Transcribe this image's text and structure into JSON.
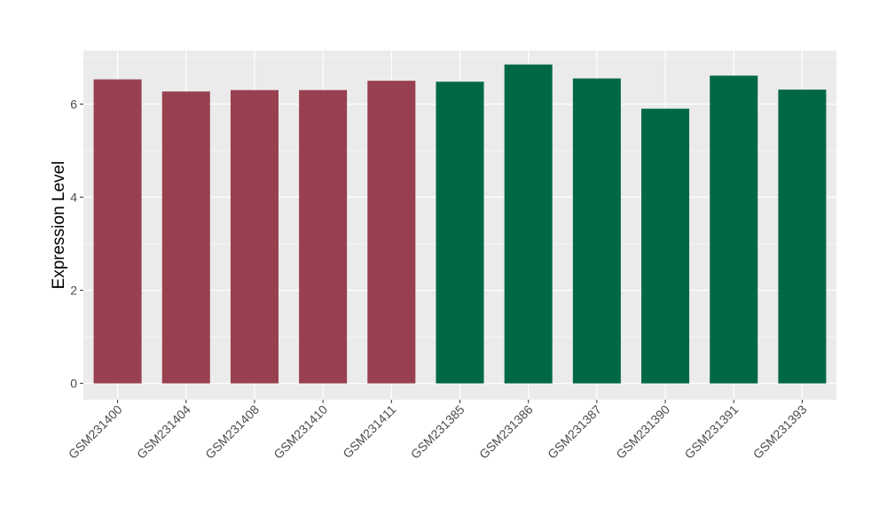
{
  "chart_data": {
    "type": "bar",
    "title": "",
    "xlabel": "",
    "ylabel": "Expression Level",
    "ylim": [
      -0.35,
      7.15
    ],
    "yticks": [
      0,
      2,
      4,
      6
    ],
    "grid": true,
    "categories": [
      "GSM231400",
      "GSM231404",
      "GSM231408",
      "GSM231410",
      "GSM231411",
      "GSM231385",
      "GSM231386",
      "GSM231387",
      "GSM231390",
      "GSM231391",
      "GSM231393"
    ],
    "values": [
      6.53,
      6.27,
      6.3,
      6.3,
      6.5,
      6.48,
      6.85,
      6.55,
      5.9,
      6.61,
      6.31
    ],
    "colors": [
      "#98404f",
      "#98404f",
      "#98404f",
      "#98404f",
      "#98404f",
      "#006845",
      "#006845",
      "#006845",
      "#006845",
      "#006845",
      "#006845"
    ],
    "panel_background": "#ebebeb",
    "grid_color": "#ffffff"
  }
}
